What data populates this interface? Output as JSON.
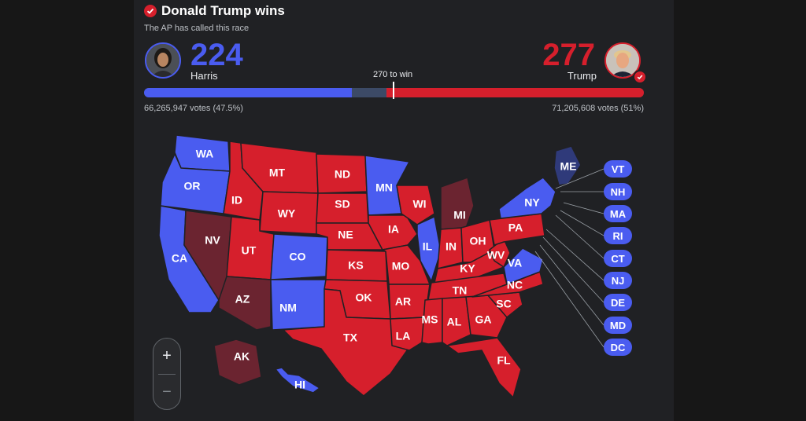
{
  "header": {
    "title": "Donald Trump wins",
    "subtitle": "The AP has called this race"
  },
  "harris": {
    "electoral_votes": "224",
    "name": "Harris",
    "popular_votes": "66,265,947 votes (47.5%)",
    "color": "#4a5cf0",
    "bar_fraction": 0.416
  },
  "trump": {
    "electoral_votes": "277",
    "name": "Trump",
    "popular_votes": "71,205,608 votes (51%)",
    "color": "#d61f2c",
    "bar_fraction": 0.515
  },
  "uncalled": {
    "color": "#3c4a66",
    "bar_fraction": 0.069
  },
  "threshold": {
    "label": "270 to win"
  },
  "colors": {
    "dem_won": "#4a5cf0",
    "rep_won": "#d61f2c",
    "rep_leading": "#6b2430",
    "dem_leading": "#2f3a7a"
  },
  "states": [
    {
      "code": "WA",
      "status": "dem_won"
    },
    {
      "code": "OR",
      "status": "dem_won"
    },
    {
      "code": "CA",
      "status": "dem_won"
    },
    {
      "code": "NV",
      "status": "rep_leading"
    },
    {
      "code": "ID",
      "status": "rep_won"
    },
    {
      "code": "MT",
      "status": "rep_won"
    },
    {
      "code": "WY",
      "status": "rep_won"
    },
    {
      "code": "UT",
      "status": "rep_won"
    },
    {
      "code": "AZ",
      "status": "rep_leading"
    },
    {
      "code": "CO",
      "status": "dem_won"
    },
    {
      "code": "NM",
      "status": "dem_won"
    },
    {
      "code": "ND",
      "status": "rep_won"
    },
    {
      "code": "SD",
      "status": "rep_won"
    },
    {
      "code": "NE",
      "status": "rep_won"
    },
    {
      "code": "KS",
      "status": "rep_won"
    },
    {
      "code": "OK",
      "status": "rep_won"
    },
    {
      "code": "TX",
      "status": "rep_won"
    },
    {
      "code": "MN",
      "status": "dem_won"
    },
    {
      "code": "IA",
      "status": "rep_won"
    },
    {
      "code": "MO",
      "status": "rep_won"
    },
    {
      "code": "AR",
      "status": "rep_won"
    },
    {
      "code": "LA",
      "status": "rep_won"
    },
    {
      "code": "WI",
      "status": "rep_won"
    },
    {
      "code": "IL",
      "status": "dem_won"
    },
    {
      "code": "MI",
      "status": "rep_leading"
    },
    {
      "code": "IN",
      "status": "rep_won"
    },
    {
      "code": "OH",
      "status": "rep_won"
    },
    {
      "code": "KY",
      "status": "rep_won"
    },
    {
      "code": "TN",
      "status": "rep_won"
    },
    {
      "code": "MS",
      "status": "rep_won"
    },
    {
      "code": "AL",
      "status": "rep_won"
    },
    {
      "code": "GA",
      "status": "rep_won"
    },
    {
      "code": "FL",
      "status": "rep_won"
    },
    {
      "code": "SC",
      "status": "rep_won"
    },
    {
      "code": "NC",
      "status": "rep_won"
    },
    {
      "code": "VA",
      "status": "dem_won"
    },
    {
      "code": "WV",
      "status": "rep_won"
    },
    {
      "code": "PA",
      "status": "rep_won"
    },
    {
      "code": "NY",
      "status": "dem_won"
    },
    {
      "code": "ME",
      "status": "dem_leading"
    },
    {
      "code": "AK",
      "status": "rep_leading"
    },
    {
      "code": "HI",
      "status": "dem_won"
    }
  ],
  "small_states": [
    {
      "code": "VT",
      "status": "dem_won"
    },
    {
      "code": "NH",
      "status": "dem_won"
    },
    {
      "code": "MA",
      "status": "dem_won"
    },
    {
      "code": "RI",
      "status": "dem_won"
    },
    {
      "code": "CT",
      "status": "dem_won"
    },
    {
      "code": "NJ",
      "status": "dem_won"
    },
    {
      "code": "DE",
      "status": "dem_won"
    },
    {
      "code": "MD",
      "status": "dem_won"
    },
    {
      "code": "DC",
      "status": "dem_won"
    }
  ],
  "zoom": {
    "in_label": "+",
    "out_label": "−"
  }
}
